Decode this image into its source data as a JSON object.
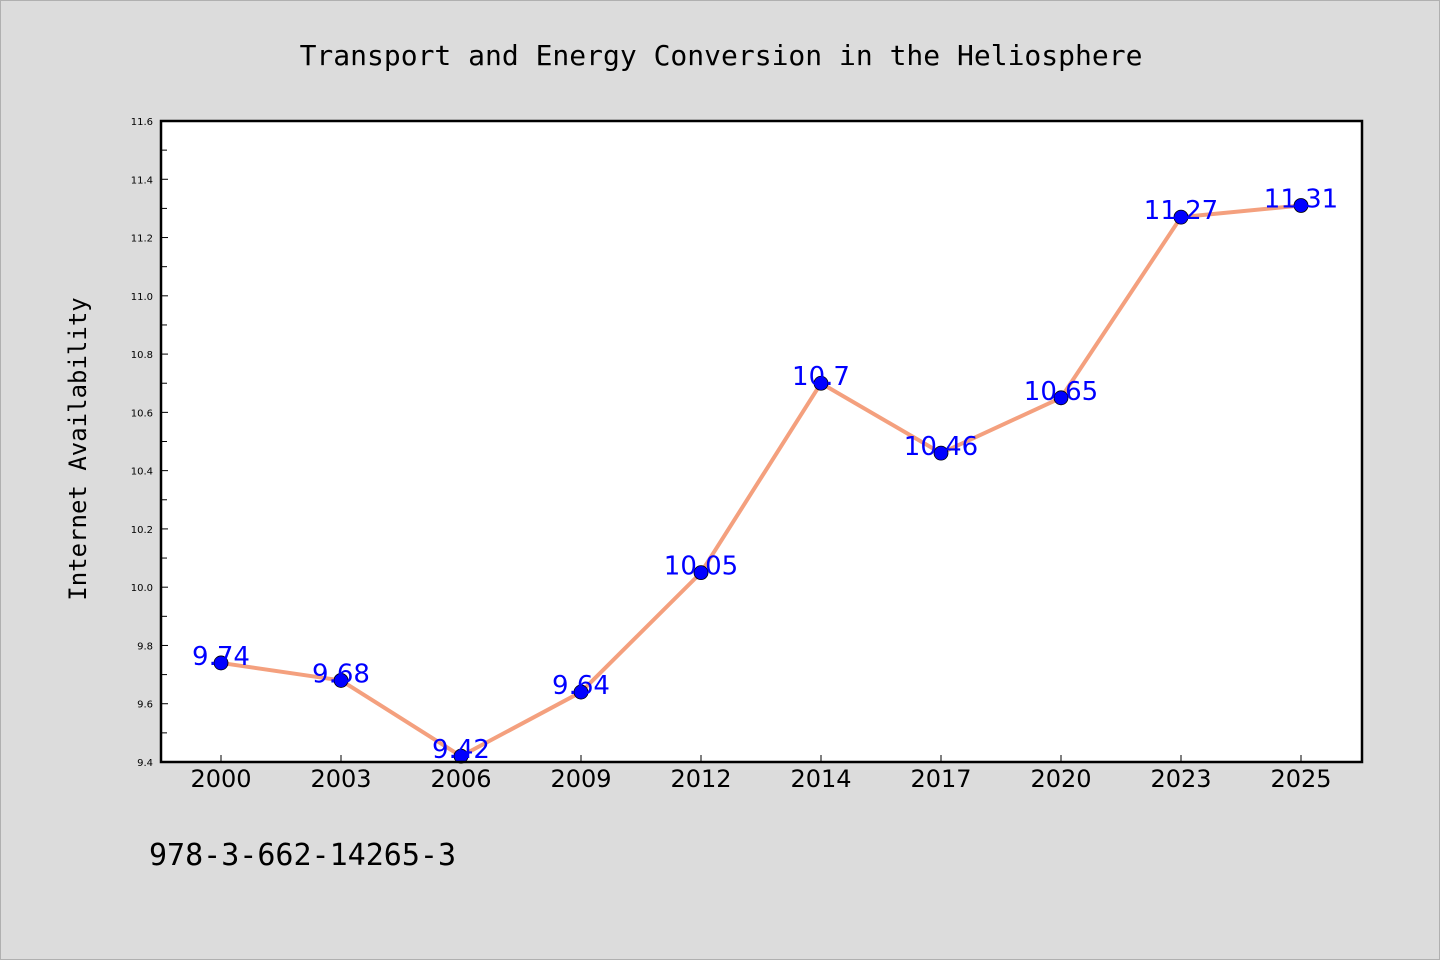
{
  "chart_data": {
    "type": "line",
    "title": "Transport and Energy Conversion in the Heliosphere",
    "xlabel": "",
    "ylabel": "Internet Availability",
    "categories": [
      "2000",
      "2003",
      "2006",
      "2009",
      "2012",
      "2014",
      "2017",
      "2020",
      "2023",
      "2025"
    ],
    "series": [
      {
        "values": [
          9.74,
          9.68,
          9.42,
          9.64,
          10.05,
          10.7,
          10.46,
          10.65,
          11.27,
          11.31
        ],
        "data_labels": [
          "9.74",
          "9.68",
          "9.42",
          "9.64",
          "10.05",
          "10.7",
          "10.46",
          "10.65",
          "11.27",
          "11.31"
        ],
        "line_color": "#f4a07e",
        "marker_color": "#0000ff"
      }
    ],
    "ylim": [
      9.4,
      11.6
    ],
    "yticks": [
      "9.4",
      "9.6",
      "9.8",
      "10.0",
      "10.2",
      "10.4",
      "10.6",
      "10.8",
      "11.0",
      "11.2",
      "11.4",
      "11.6"
    ],
    "grid": false,
    "legend": "none"
  },
  "footer": {
    "text": "978-3-662-14265-3"
  }
}
